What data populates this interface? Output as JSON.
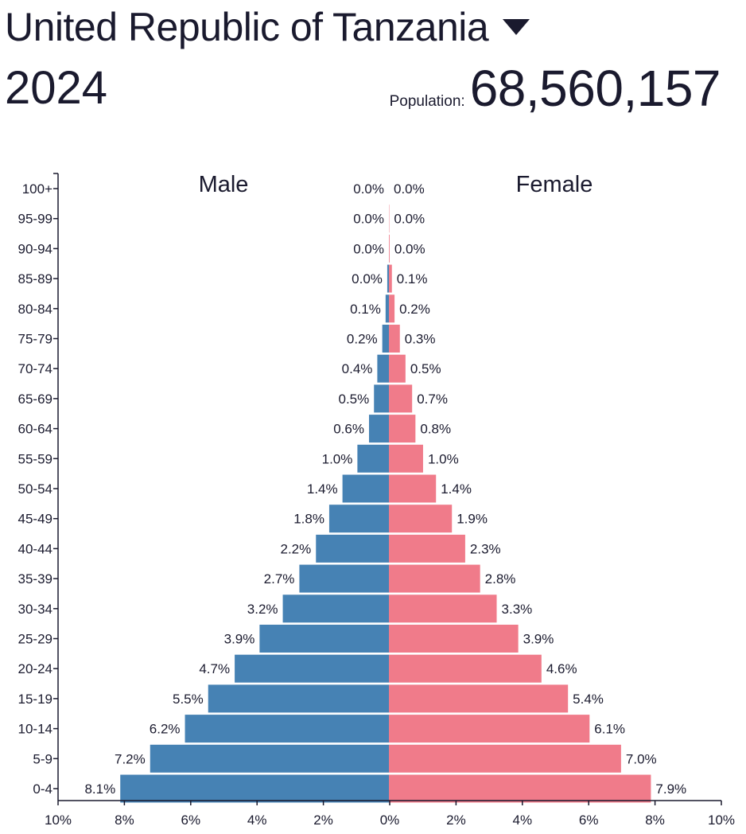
{
  "header": {
    "country": "United Republic of Tanzania",
    "year": "2024",
    "population_label": "Population:",
    "population_value": "68,560,157"
  },
  "chart_data": {
    "type": "bar",
    "orientation": "horizontal",
    "categories": [
      "100+",
      "95-99",
      "90-94",
      "85-89",
      "80-84",
      "75-79",
      "70-74",
      "65-69",
      "60-64",
      "55-59",
      "50-54",
      "45-49",
      "40-44",
      "35-39",
      "30-34",
      "25-29",
      "20-24",
      "15-19",
      "10-14",
      "5-9",
      "0-4"
    ],
    "series": [
      {
        "name": "Male",
        "color": "#4682b4",
        "values": [
          0.0,
          0.0,
          0.0,
          0.05,
          0.1,
          0.2,
          0.35,
          0.45,
          0.6,
          0.95,
          1.4,
          1.8,
          2.2,
          2.7,
          3.2,
          3.9,
          4.65,
          5.45,
          6.15,
          7.2,
          8.1
        ],
        "labels": [
          "0.0%",
          "0.0%",
          "0.0%",
          "0.0%",
          "0.1%",
          "0.2%",
          "0.4%",
          "0.5%",
          "0.6%",
          "1.0%",
          "1.4%",
          "1.8%",
          "2.2%",
          "2.7%",
          "3.2%",
          "3.9%",
          "4.7%",
          "5.5%",
          "6.2%",
          "7.2%",
          "8.1%"
        ]
      },
      {
        "name": "Female",
        "color": "#f07b8a",
        "values": [
          0.0,
          0.01,
          0.02,
          0.09,
          0.17,
          0.33,
          0.5,
          0.7,
          0.8,
          1.03,
          1.42,
          1.9,
          2.3,
          2.75,
          3.25,
          3.9,
          4.6,
          5.4,
          6.05,
          7.0,
          7.9
        ],
        "labels": [
          "0.0%",
          "0.0%",
          "0.0%",
          "0.1%",
          "0.2%",
          "0.3%",
          "0.5%",
          "0.7%",
          "0.8%",
          "1.0%",
          "1.4%",
          "1.9%",
          "2.3%",
          "2.8%",
          "3.3%",
          "3.9%",
          "4.6%",
          "5.4%",
          "6.1%",
          "7.0%",
          "7.9%"
        ]
      }
    ],
    "x_ticks": [
      "10%",
      "8%",
      "6%",
      "4%",
      "2%",
      "0%",
      "2%",
      "4%",
      "6%",
      "8%",
      "10%"
    ],
    "xlim": [
      -10,
      10
    ],
    "grid": false
  }
}
